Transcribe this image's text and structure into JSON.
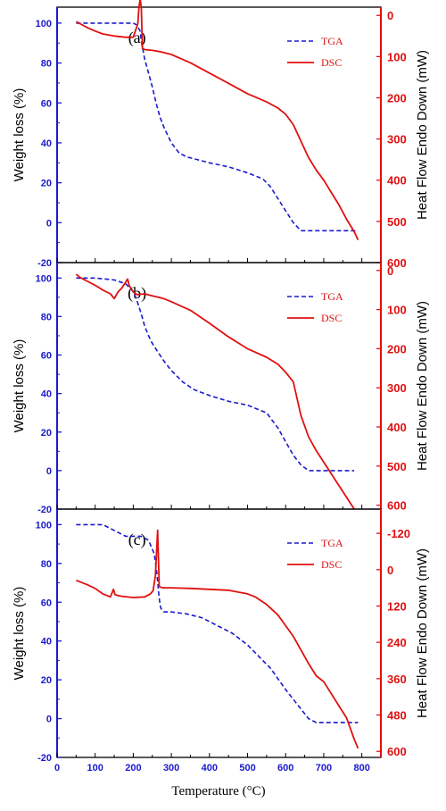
{
  "figure": {
    "xlabel": "Temperature (°C)",
    "left_ylabel": "Weight loss (%)",
    "right_ylabel": "Heat Flow Endo Down (mW)"
  },
  "colors": {
    "tga": "#1a1acc",
    "dsc": "#e01010",
    "axis_left": "#1a1acc",
    "axis_right": "#e01010"
  },
  "chart_data": [
    {
      "type": "line",
      "panel_label": "(a)",
      "xlim": [
        0,
        850
      ],
      "ylim_left": [
        -20,
        108
      ],
      "yticks_left": [
        -20,
        0,
        20,
        40,
        60,
        80,
        100
      ],
      "ylim_right": [
        600,
        -20
      ],
      "yticks_right": [
        600,
        500,
        400,
        300,
        200,
        100,
        0
      ],
      "legend": [
        "TGA",
        "DSC"
      ],
      "series": [
        {
          "name": "TGA",
          "axis": "left",
          "style": "dashed",
          "x": [
            50,
            100,
            150,
            200,
            210,
            218,
            222,
            230,
            240,
            250,
            260,
            270,
            280,
            290,
            300,
            320,
            340,
            360,
            400,
            450,
            500,
            540,
            560,
            580,
            600,
            620,
            640,
            660,
            700,
            750,
            790
          ],
          "y": [
            100,
            100,
            100,
            100,
            99,
            96,
            90,
            82,
            75,
            68,
            60,
            53,
            48,
            44,
            40,
            35,
            33,
            32,
            30,
            28,
            25,
            22,
            18,
            12,
            6,
            0,
            -4,
            -4,
            -4,
            -4,
            -4
          ]
        },
        {
          "name": "DSC",
          "axis": "right",
          "style": "solid",
          "x": [
            50,
            60,
            80,
            100,
            120,
            150,
            180,
            200,
            212,
            215,
            218,
            221,
            224,
            230,
            250,
            270,
            300,
            350,
            400,
            450,
            500,
            550,
            580,
            600,
            620,
            640,
            660,
            680,
            700,
            720,
            740,
            760,
            780,
            790
          ],
          "y": [
            15,
            20,
            30,
            38,
            45,
            50,
            53,
            53,
            20,
            -20,
            -40,
            -20,
            80,
            83,
            85,
            88,
            95,
            115,
            140,
            165,
            190,
            210,
            225,
            240,
            265,
            305,
            345,
            375,
            400,
            430,
            460,
            495,
            525,
            545
          ]
        }
      ]
    },
    {
      "type": "line",
      "panel_label": "(b)",
      "xlim": [
        0,
        850
      ],
      "ylim_left": [
        -20,
        108
      ],
      "yticks_left": [
        -20,
        0,
        20,
        40,
        60,
        80,
        100
      ],
      "ylim_right": [
        610,
        -20
      ],
      "yticks_right": [
        600,
        500,
        400,
        300,
        200,
        100,
        0
      ],
      "legend": [
        "TGA",
        "DSC"
      ],
      "series": [
        {
          "name": "TGA",
          "axis": "left",
          "style": "dashed",
          "x": [
            50,
            100,
            150,
            180,
            200,
            210,
            220,
            230,
            240,
            250,
            260,
            280,
            300,
            330,
            360,
            400,
            450,
            500,
            550,
            580,
            600,
            620,
            640,
            660,
            700,
            750,
            780
          ],
          "y": [
            100,
            100,
            99,
            97,
            93,
            88,
            82,
            75,
            70,
            66,
            63,
            57,
            52,
            46,
            42,
            39,
            36,
            34,
            30,
            22,
            15,
            8,
            3,
            0,
            0,
            0,
            0
          ],
          "labels": []
        },
        {
          "name": "DSC",
          "axis": "right",
          "style": "solid",
          "x": [
            50,
            60,
            80,
            100,
            120,
            140,
            150,
            160,
            170,
            180,
            185,
            190,
            200,
            210,
            230,
            250,
            280,
            300,
            350,
            400,
            450,
            500,
            550,
            580,
            600,
            620,
            640,
            660,
            680,
            700,
            720,
            740,
            760,
            780
          ],
          "y": [
            10,
            18,
            28,
            38,
            50,
            60,
            72,
            55,
            45,
            30,
            22,
            40,
            55,
            62,
            60,
            65,
            72,
            80,
            102,
            135,
            170,
            200,
            222,
            240,
            260,
            285,
            370,
            425,
            460,
            490,
            520,
            550,
            580,
            610
          ]
        }
      ]
    },
    {
      "type": "line",
      "panel_label": "(c)",
      "xlim": [
        0,
        850
      ],
      "ylim_left": [
        -20,
        108
      ],
      "yticks_left": [
        -20,
        0,
        20,
        40,
        60,
        80,
        100
      ],
      "ylim_right": [
        620,
        -200
      ],
      "yticks_right": [
        -120,
        0,
        120,
        240,
        360,
        480,
        600
      ],
      "legend": [
        "TGA",
        "DSC"
      ],
      "series": [
        {
          "name": "TGA",
          "axis": "left",
          "style": "dashed",
          "x": [
            50,
            100,
            120,
            140,
            160,
            180,
            200,
            220,
            240,
            255,
            262,
            268,
            272,
            280,
            300,
            340,
            380,
            420,
            460,
            500,
            530,
            560,
            600,
            640,
            660,
            680,
            720,
            750,
            790
          ],
          "y": [
            100,
            100,
            100,
            98,
            96,
            94,
            94,
            94,
            92,
            85,
            75,
            62,
            57,
            55,
            55,
            54,
            52,
            48,
            44,
            38,
            32,
            26,
            15,
            5,
            0,
            -2,
            -2,
            -2,
            -2
          ]
        },
        {
          "name": "DSC",
          "axis": "right",
          "style": "solid",
          "x": [
            50,
            80,
            100,
            120,
            140,
            148,
            152,
            158,
            170,
            200,
            230,
            245,
            252,
            258,
            262,
            264,
            266,
            268,
            272,
            280,
            300,
            350,
            400,
            450,
            500,
            520,
            550,
            580,
            600,
            620,
            640,
            660,
            680,
            700,
            720,
            740,
            760,
            780,
            790
          ],
          "y": [
            35,
            50,
            62,
            80,
            90,
            65,
            82,
            85,
            88,
            92,
            90,
            80,
            70,
            20,
            -80,
            -130,
            -40,
            55,
            58,
            60,
            60,
            62,
            65,
            68,
            80,
            90,
            115,
            150,
            185,
            220,
            265,
            310,
            350,
            370,
            410,
            450,
            490,
            560,
            590
          ]
        }
      ]
    }
  ]
}
